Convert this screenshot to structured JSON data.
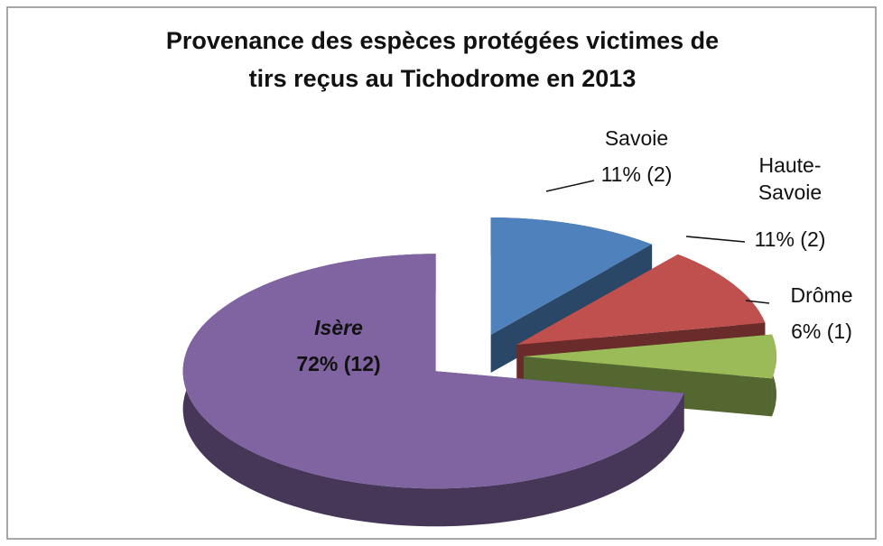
{
  "chart_data": {
    "type": "pie3d",
    "title": "Provenance des espèces protégées victimes de tirs reçus au Tichodrome en 2013",
    "categories": [
      "Savoie",
      "Haute-Savoie",
      "Drôme",
      "Isère"
    ],
    "values": [
      11,
      11,
      6,
      72
    ],
    "value_labels": [
      "11% (2)",
      "11% (2)",
      "6% (1)",
      "72% (12)"
    ],
    "colors": [
      "#4f81bd",
      "#c0504d",
      "#9bbb59",
      "#8064a2"
    ]
  }
}
